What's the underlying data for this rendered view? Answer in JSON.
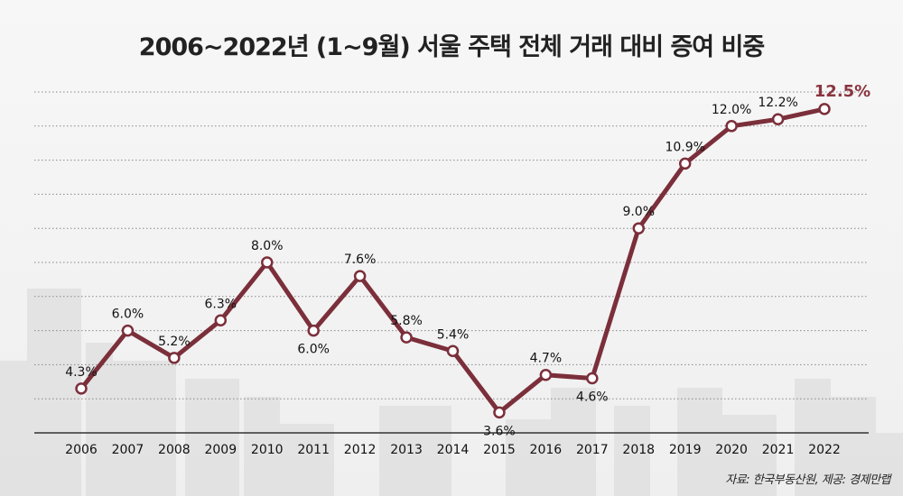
{
  "chart_data": {
    "type": "line",
    "title": "2006~2022년 (1~9월) 서울 주택 전체 거래 대비 증여 비중",
    "categories": [
      "2006",
      "2007",
      "2008",
      "2009",
      "2010",
      "2011",
      "2012",
      "2013",
      "2014",
      "2015",
      "2016",
      "2017",
      "2018",
      "2019",
      "2020",
      "2021",
      "2022"
    ],
    "values": [
      4.3,
      6.0,
      5.2,
      6.3,
      8.0,
      6.0,
      7.6,
      5.8,
      5.4,
      3.6,
      4.7,
      4.6,
      9.0,
      10.9,
      12.0,
      12.2,
      12.5
    ],
    "labels": [
      "4.3%",
      "6.0%",
      "5.2%",
      "6.3%",
      "8.0%",
      "6.0%",
      "7.6%",
      "5.8%",
      "5.4%",
      "3.6%",
      "4.7%",
      "4.6%",
      "9.0%",
      "10.9%",
      "12.0%",
      "12.2%",
      "12.5%"
    ],
    "xlabel": "",
    "ylabel": "",
    "ylim": [
      3,
      13
    ],
    "grid": true,
    "line_color": "#7b2f3a",
    "highlight_color": "#8a3540"
  },
  "source": "자료: 한국부동산원, 제공: 경제만랩"
}
